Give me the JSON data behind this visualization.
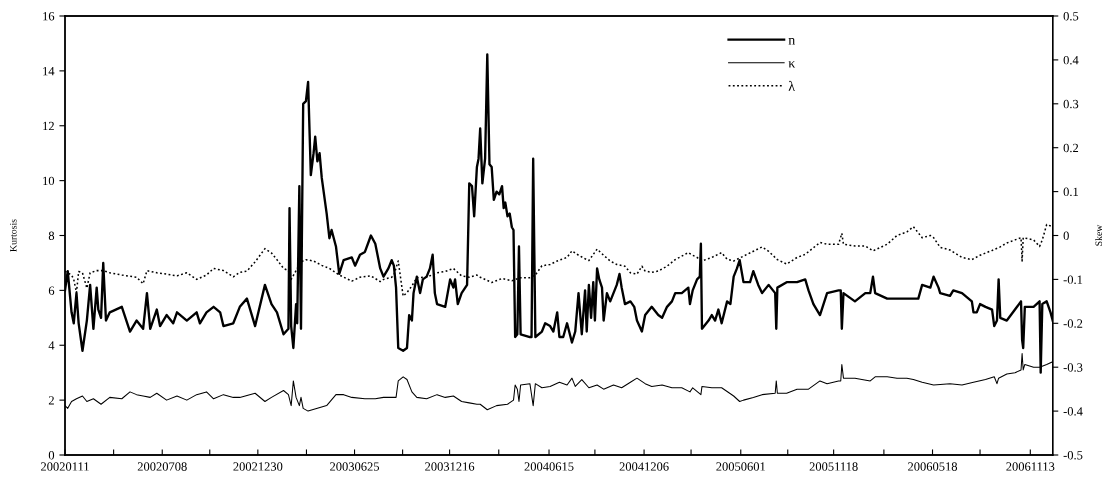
{
  "chart_data": {
    "type": "line",
    "ylabel": "Kurtosis",
    "y2label": "Skew",
    "legend": "top right",
    "line_style": "solid",
    "xlim": [
      "2002-01-11",
      "2006-12-24"
    ],
    "xticks": [
      {
        "value": "2002-01-11",
        "label": "20020111"
      },
      {
        "value": "2002-04-10",
        "label": null
      },
      {
        "value": "2002-07-08",
        "label": "20020708"
      },
      {
        "value": "2002-10-03",
        "label": null
      },
      {
        "value": "2002-12-30",
        "label": "20021230"
      },
      {
        "value": "2003-03-29",
        "label": null
      },
      {
        "value": "2003-06-25",
        "label": "20030625"
      },
      {
        "value": "2003-09-21",
        "label": null
      },
      {
        "value": "2003-12-16",
        "label": "20031216"
      },
      {
        "value": "2004-03-15",
        "label": null
      },
      {
        "value": "2004-06-15",
        "label": "20040615"
      },
      {
        "value": "2004-09-07",
        "label": null
      },
      {
        "value": "2004-12-06",
        "label": "20041206"
      },
      {
        "value": "2005-03-02",
        "label": null
      },
      {
        "value": "2005-06-01",
        "label": "20050601"
      },
      {
        "value": "2005-08-26",
        "label": null
      },
      {
        "value": "2005-11-18",
        "label": "20051118"
      },
      {
        "value": "2006-02-18",
        "label": null
      },
      {
        "value": "2006-05-18",
        "label": "20060518"
      },
      {
        "value": "2006-08-13",
        "label": null
      },
      {
        "value": "2006-11-13",
        "label": "20061113"
      }
    ],
    "ylim": [
      0,
      16
    ],
    "yticks": [
      0,
      2,
      4,
      6,
      8,
      10,
      12,
      14,
      16
    ],
    "y2lim": [
      -0.5,
      0.5
    ],
    "y2ticks": [
      -0.5,
      -0.4,
      -0.3,
      -0.2,
      -0.1,
      0,
      0.1,
      0.2,
      0.3,
      0.4,
      0.5
    ],
    "series": [
      {
        "name": "n",
        "color": "#000000",
        "x": [
          "2002-01-11",
          "2002-01-16",
          "2002-01-23",
          "2002-01-27",
          "2002-02-01",
          "2002-02-05",
          "2002-02-12",
          "2002-02-20",
          "2002-02-26",
          "2002-03-04",
          "2002-03-10",
          "2002-03-13",
          "2002-03-18",
          "2002-03-22",
          "2002-03-27",
          "2002-04-03",
          "2002-04-25",
          "2002-05-10",
          "2002-05-22",
          "2002-06-03",
          "2002-06-10",
          "2002-06-16",
          "2002-06-28",
          "2002-07-04",
          "2002-07-16",
          "2002-07-28",
          "2002-08-04",
          "2002-08-22",
          "2002-09-09",
          "2002-09-15",
          "2002-09-27",
          "2002-10-10",
          "2002-10-22",
          "2002-10-28",
          "2002-11-15",
          "2002-11-27",
          "2002-12-10",
          "2002-12-25",
          "2003-01-12",
          "2003-01-24",
          "2003-02-03",
          "2003-02-15",
          "2003-02-24",
          "2003-02-26",
          "2003-03-01",
          "2003-03-05",
          "2003-03-10",
          "2003-03-12",
          "2003-03-16",
          "2003-03-19",
          "2003-03-23",
          "2003-03-28",
          "2003-04-01",
          "2003-04-06",
          "2003-04-11",
          "2003-04-14",
          "2003-04-18",
          "2003-04-22",
          "2003-04-26",
          "2003-05-05",
          "2003-05-10",
          "2003-05-14",
          "2003-05-22",
          "2003-05-28",
          "2003-06-05",
          "2003-06-20",
          "2003-06-26",
          "2003-07-05",
          "2003-07-14",
          "2003-07-25",
          "2003-08-02",
          "2003-08-11",
          "2003-08-17",
          "2003-08-26",
          "2003-09-01",
          "2003-09-05",
          "2003-09-09",
          "2003-09-13",
          "2003-09-22",
          "2003-09-29",
          "2003-10-03",
          "2003-10-08",
          "2003-10-11",
          "2003-10-17",
          "2003-10-23",
          "2003-10-28",
          "2003-11-04",
          "2003-11-10",
          "2003-11-15",
          "2003-11-19",
          "2003-11-23",
          "2003-12-08",
          "2003-12-17",
          "2003-12-23",
          "2003-12-26",
          "2003-12-31",
          "2004-01-07",
          "2004-01-17",
          "2004-01-21",
          "2004-01-26",
          "2004-01-30",
          "2004-02-04",
          "2004-02-07",
          "2004-02-10",
          "2004-02-14",
          "2004-02-19",
          "2004-02-23",
          "2004-02-27",
          "2004-03-02",
          "2004-03-06",
          "2004-03-11",
          "2004-03-16",
          "2004-03-21",
          "2004-03-24",
          "2004-03-27",
          "2004-03-31",
          "2004-04-04",
          "2004-04-08",
          "2004-04-11",
          "2004-04-14",
          "2004-04-18",
          "2004-04-21",
          "2004-04-24",
          "2004-05-11",
          "2004-05-14",
          "2004-05-17",
          "2004-05-21",
          "2004-06-02",
          "2004-06-08",
          "2004-06-17",
          "2004-06-23",
          "2004-06-30",
          "2004-07-04",
          "2004-07-11",
          "2004-07-18",
          "2004-07-27",
          "2004-08-02",
          "2004-08-08",
          "2004-08-14",
          "2004-08-20",
          "2004-08-23",
          "2004-08-27",
          "2004-08-31",
          "2004-09-04",
          "2004-09-07",
          "2004-09-11",
          "2004-09-15",
          "2004-09-20",
          "2004-09-23",
          "2004-09-29",
          "2004-10-05",
          "2004-10-11",
          "2004-10-17",
          "2004-10-22",
          "2004-10-26",
          "2004-11-01",
          "2004-11-11",
          "2004-11-18",
          "2004-11-23",
          "2004-12-02",
          "2004-12-08",
          "2004-12-20",
          "2005-01-01",
          "2005-01-08",
          "2005-01-17",
          "2005-01-26",
          "2005-02-01",
          "2005-02-13",
          "2005-02-25",
          "2005-02-28",
          "2005-03-05",
          "2005-03-13",
          "2005-03-18",
          "2005-03-20",
          "2005-03-22",
          "2005-04-03",
          "2005-04-09",
          "2005-04-15",
          "2005-04-21",
          "2005-04-27",
          "2005-05-07",
          "2005-05-13",
          "2005-05-19",
          "2005-05-25",
          "2005-05-30",
          "2005-06-06",
          "2005-06-18",
          "2005-06-24",
          "2005-07-03",
          "2005-07-10",
          "2005-07-22",
          "2005-08-03",
          "2005-08-05",
          "2005-08-07",
          "2005-08-24",
          "2005-09-12",
          "2005-09-27",
          "2005-10-03",
          "2005-10-12",
          "2005-10-24",
          "2005-11-06",
          "2005-11-27",
          "2005-12-01",
          "2005-12-03",
          "2005-12-06",
          "2005-12-27",
          "2006-01-15",
          "2006-01-24",
          "2006-01-29",
          "2006-02-02",
          "2006-02-24",
          "2006-03-14",
          "2006-04-01",
          "2006-04-13",
          "2006-04-22",
          "2006-04-29",
          "2006-05-14",
          "2006-05-20",
          "2006-05-29",
          "2006-06-01",
          "2006-06-19",
          "2006-06-25",
          "2006-07-11",
          "2006-07-29",
          "2006-08-01",
          "2006-08-07",
          "2006-08-13",
          "2006-08-23",
          "2006-09-04",
          "2006-09-08",
          "2006-09-13",
          "2006-09-16",
          "2006-09-19",
          "2006-10-01",
          "2006-10-16",
          "2006-10-27",
          "2006-10-29",
          "2006-10-31",
          "2006-11-03",
          "2006-11-19",
          "2006-11-30",
          "2006-12-02",
          "2006-12-05",
          "2006-12-13",
          "2006-12-20",
          "2006-12-24"
        ],
        "values": [
          6.0,
          6.7,
          5.2,
          4.8,
          5.9,
          4.8,
          3.8,
          4.9,
          6.2,
          4.6,
          6.1,
          5.3,
          5.0,
          7.0,
          4.9,
          5.2,
          5.4,
          4.5,
          4.9,
          4.6,
          5.9,
          4.6,
          5.3,
          4.7,
          5.1,
          4.8,
          5.2,
          4.9,
          5.2,
          4.8,
          5.2,
          5.4,
          5.2,
          4.7,
          4.8,
          5.4,
          5.7,
          4.7,
          6.2,
          5.5,
          5.2,
          4.4,
          4.6,
          9.0,
          4.7,
          3.9,
          5.5,
          4.8,
          9.8,
          4.6,
          12.8,
          12.9,
          13.6,
          10.2,
          11.0,
          11.6,
          10.7,
          11.0,
          10.1,
          8.8,
          7.9,
          8.2,
          7.6,
          6.6,
          7.1,
          7.2,
          6.9,
          7.3,
          7.4,
          8.0,
          7.7,
          6.8,
          6.5,
          6.8,
          7.1,
          6.9,
          6.1,
          3.9,
          3.8,
          3.9,
          5.1,
          4.9,
          5.9,
          6.5,
          5.9,
          6.4,
          6.5,
          6.8,
          7.3,
          5.9,
          5.5,
          5.4,
          6.4,
          6.1,
          6.4,
          5.5,
          5.9,
          6.2,
          9.9,
          9.8,
          8.7,
          10.5,
          10.8,
          11.9,
          9.9,
          10.8,
          14.6,
          10.6,
          10.5,
          9.3,
          9.6,
          9.5,
          9.8,
          9.0,
          9.2,
          8.7,
          8.8,
          8.3,
          8.2,
          4.3,
          4.4,
          7.6,
          4.4,
          4.3,
          4.3,
          10.8,
          4.3,
          4.5,
          4.8,
          4.7,
          4.5,
          5.2,
          4.3,
          4.3,
          4.8,
          4.1,
          4.5,
          5.9,
          4.4,
          6.0,
          4.5,
          6.2,
          5.0,
          6.3,
          4.9,
          6.8,
          6.4,
          6.1,
          4.9,
          5.9,
          5.6,
          5.9,
          6.2,
          6.6,
          6.1,
          5.5,
          5.6,
          5.4,
          4.9,
          4.5,
          5.1,
          5.4,
          5.1,
          5.0,
          5.4,
          5.6,
          5.9,
          5.9,
          6.1,
          5.5,
          6.0,
          6.4,
          6.5,
          7.7,
          4.6,
          4.9,
          5.1,
          4.9,
          5.3,
          4.8,
          5.6,
          5.5,
          6.5,
          6.8,
          7.1,
          6.3,
          6.3,
          6.7,
          6.2,
          5.9,
          6.2,
          5.9,
          4.6,
          6.1,
          6.3,
          6.3,
          6.4,
          6.0,
          5.5,
          5.1,
          5.9,
          6.0,
          6.0,
          4.6,
          5.9,
          5.6,
          5.9,
          5.9,
          6.5,
          5.9,
          5.7,
          5.7,
          5.7,
          5.7,
          5.7,
          6.2,
          6.1,
          6.5,
          6.1,
          5.9,
          5.8,
          6.0,
          5.9,
          5.6,
          5.2,
          5.2,
          5.5,
          5.4,
          5.3,
          4.7,
          4.9,
          6.4,
          5.0,
          4.9,
          5.3,
          5.6,
          4.2,
          3.9,
          5.4,
          5.4,
          5.6,
          3.0,
          5.5,
          5.6,
          5.2,
          4.9
        ]
      },
      {
        "name": "κ",
        "color": "#000000",
        "x": [
          "2002-01-11",
          "2002-01-16",
          "2002-01-23",
          "2002-02-01",
          "2002-02-12",
          "2002-02-20",
          "2002-03-04",
          "2002-03-18",
          "2002-04-03",
          "2002-04-25",
          "2002-05-10",
          "2002-05-22",
          "2002-06-03",
          "2002-06-16",
          "2002-06-28",
          "2002-07-16",
          "2002-08-04",
          "2002-08-22",
          "2002-09-09",
          "2002-09-27",
          "2002-10-10",
          "2002-10-28",
          "2002-11-15",
          "2002-11-27",
          "2002-12-25",
          "2003-01-12",
          "2003-01-24",
          "2003-02-15",
          "2003-02-24",
          "2003-03-01",
          "2003-03-05",
          "2003-03-10",
          "2003-03-16",
          "2003-03-19",
          "2003-03-23",
          "2003-04-01",
          "2003-04-18",
          "2003-05-05",
          "2003-05-22",
          "2003-06-05",
          "2003-06-20",
          "2003-07-14",
          "2003-08-02",
          "2003-08-17",
          "2003-09-01",
          "2003-09-09",
          "2003-09-13",
          "2003-09-22",
          "2003-09-29",
          "2003-10-08",
          "2003-10-17",
          "2003-11-04",
          "2003-11-23",
          "2003-12-08",
          "2003-12-23",
          "2004-01-07",
          "2004-01-21",
          "2004-02-04",
          "2004-02-10",
          "2004-02-23",
          "2004-03-11",
          "2004-03-31",
          "2004-04-11",
          "2004-04-14",
          "2004-04-18",
          "2004-04-21",
          "2004-04-24",
          "2004-05-11",
          "2004-05-17",
          "2004-05-21",
          "2004-06-02",
          "2004-06-17",
          "2004-07-04",
          "2004-07-18",
          "2004-07-27",
          "2004-08-02",
          "2004-08-14",
          "2004-08-27",
          "2004-09-11",
          "2004-09-23",
          "2004-10-11",
          "2004-10-26",
          "2004-11-11",
          "2004-11-23",
          "2004-12-08",
          "2004-12-20",
          "2005-01-08",
          "2005-01-26",
          "2005-02-13",
          "2005-02-28",
          "2005-03-05",
          "2005-03-20",
          "2005-03-22",
          "2005-04-09",
          "2005-04-27",
          "2005-05-19",
          "2005-05-30",
          "2005-06-06",
          "2005-06-24",
          "2005-07-10",
          "2005-08-03",
          "2005-08-05",
          "2005-08-07",
          "2005-08-24",
          "2005-09-12",
          "2005-10-03",
          "2005-10-24",
          "2005-11-06",
          "2005-11-27",
          "2005-12-01",
          "2005-12-03",
          "2005-12-06",
          "2005-12-27",
          "2006-01-24",
          "2006-02-02",
          "2006-02-24",
          "2006-03-14",
          "2006-04-01",
          "2006-04-13",
          "2006-04-29",
          "2006-05-20",
          "2006-06-19",
          "2006-07-11",
          "2006-08-01",
          "2006-08-23",
          "2006-09-08",
          "2006-09-13",
          "2006-09-16",
          "2006-10-01",
          "2006-10-16",
          "2006-10-27",
          "2006-10-29",
          "2006-10-31",
          "2006-11-03",
          "2006-11-19",
          "2006-11-30",
          "2006-12-13",
          "2006-12-24"
        ],
        "values": [
          1.8,
          1.7,
          1.95,
          2.05,
          2.15,
          1.95,
          2.05,
          1.85,
          2.1,
          2.05,
          2.3,
          2.2,
          2.15,
          2.1,
          2.25,
          2.0,
          2.15,
          2.0,
          2.2,
          2.3,
          2.05,
          2.2,
          2.1,
          2.1,
          2.25,
          1.95,
          2.1,
          2.35,
          2.2,
          1.8,
          2.7,
          2.1,
          1.8,
          2.1,
          1.7,
          1.6,
          1.7,
          1.8,
          2.2,
          2.2,
          2.1,
          2.05,
          2.05,
          2.1,
          2.1,
          2.1,
          2.7,
          2.85,
          2.75,
          2.3,
          2.1,
          2.05,
          2.2,
          2.1,
          2.15,
          1.95,
          1.9,
          1.85,
          1.85,
          1.65,
          1.8,
          1.85,
          2.0,
          2.55,
          2.4,
          1.95,
          2.55,
          2.6,
          1.8,
          2.6,
          2.45,
          2.5,
          2.65,
          2.55,
          2.8,
          2.5,
          2.75,
          2.45,
          2.55,
          2.4,
          2.55,
          2.45,
          2.65,
          2.8,
          2.6,
          2.5,
          2.55,
          2.45,
          2.45,
          2.3,
          2.45,
          2.2,
          2.5,
          2.45,
          2.45,
          2.15,
          1.95,
          2.0,
          2.1,
          2.2,
          2.25,
          2.7,
          2.25,
          2.25,
          2.4,
          2.4,
          2.7,
          2.6,
          2.7,
          2.7,
          3.3,
          2.8,
          2.8,
          2.7,
          2.85,
          2.85,
          2.8,
          2.8,
          2.75,
          2.65,
          2.55,
          2.6,
          2.55,
          2.65,
          2.75,
          2.85,
          2.6,
          2.8,
          2.95,
          3.0,
          3.1,
          3.7,
          3.1,
          3.3,
          3.2,
          3.2,
          3.3,
          3.4
        ]
      },
      {
        "name": "λ",
        "color": "#000000",
        "axis": "y2",
        "line_style": "dotted",
        "x": [
          "2002-01-11",
          "2002-01-16",
          "2002-01-23",
          "2002-01-27",
          "2002-02-01",
          "2002-02-05",
          "2002-02-12",
          "2002-02-20",
          "2002-02-26",
          "2002-03-10",
          "2002-03-22",
          "2002-04-03",
          "2002-04-25",
          "2002-05-22",
          "2002-06-03",
          "2002-06-10",
          "2002-06-28",
          "2002-07-16",
          "2002-08-04",
          "2002-08-22",
          "2002-09-09",
          "2002-09-27",
          "2002-10-10",
          "2002-10-28",
          "2002-11-15",
          "2002-11-27",
          "2002-12-10",
          "2002-12-25",
          "2003-01-12",
          "2003-01-24",
          "2003-02-03",
          "2003-02-15",
          "2003-02-24",
          "2003-03-01",
          "2003-03-10",
          "2003-03-19",
          "2003-03-28",
          "2003-04-11",
          "2003-04-26",
          "2003-05-10",
          "2003-05-28",
          "2003-06-20",
          "2003-07-05",
          "2003-07-25",
          "2003-08-11",
          "2003-08-17",
          "2003-09-01",
          "2003-09-05",
          "2003-09-13",
          "2003-09-22",
          "2003-09-29",
          "2003-10-08",
          "2003-10-17",
          "2003-11-04",
          "2003-11-23",
          "2003-12-08",
          "2003-12-23",
          "2004-01-07",
          "2004-01-21",
          "2004-02-04",
          "2004-02-10",
          "2004-03-02",
          "2004-03-21",
          "2004-04-08",
          "2004-04-24",
          "2004-05-11",
          "2004-05-21",
          "2004-06-02",
          "2004-06-17",
          "2004-06-30",
          "2004-07-18",
          "2004-07-27",
          "2004-08-08",
          "2004-08-20",
          "2004-08-27",
          "2004-09-11",
          "2004-09-23",
          "2004-10-05",
          "2004-10-17",
          "2004-11-01",
          "2004-11-11",
          "2004-11-23",
          "2004-12-02",
          "2004-12-08",
          "2004-12-20",
          "2005-01-01",
          "2005-01-17",
          "2005-02-01",
          "2005-02-25",
          "2005-03-05",
          "2005-03-13",
          "2005-03-22",
          "2005-04-09",
          "2005-04-27",
          "2005-05-07",
          "2005-05-19",
          "2005-06-06",
          "2005-06-24",
          "2005-07-10",
          "2005-07-22",
          "2005-08-07",
          "2005-08-24",
          "2005-09-12",
          "2005-09-27",
          "2005-10-12",
          "2005-10-24",
          "2005-11-06",
          "2005-11-27",
          "2005-12-03",
          "2005-12-06",
          "2005-12-27",
          "2006-01-15",
          "2006-01-29",
          "2006-02-24",
          "2006-03-14",
          "2006-04-01",
          "2006-04-13",
          "2006-04-29",
          "2006-05-14",
          "2006-05-20",
          "2006-06-01",
          "2006-06-19",
          "2006-07-11",
          "2006-07-29",
          "2006-08-13",
          "2006-09-04",
          "2006-09-19",
          "2006-10-01",
          "2006-10-16",
          "2006-10-27",
          "2006-10-29",
          "2006-10-31",
          "2006-11-19",
          "2006-11-30",
          "2006-12-05",
          "2006-12-13",
          "2006-12-24"
        ],
        "values": [
          -0.081,
          -0.085,
          -0.09,
          -0.1,
          -0.13,
          -0.082,
          -0.085,
          -0.12,
          -0.085,
          -0.08,
          -0.08,
          -0.085,
          -0.09,
          -0.095,
          -0.11,
          -0.08,
          -0.085,
          -0.088,
          -0.092,
          -0.085,
          -0.1,
          -0.09,
          -0.075,
          -0.08,
          -0.094,
          -0.084,
          -0.081,
          -0.06,
          -0.03,
          -0.04,
          -0.055,
          -0.075,
          -0.08,
          -0.1,
          -0.08,
          -0.06,
          -0.055,
          -0.058,
          -0.068,
          -0.075,
          -0.09,
          -0.104,
          -0.095,
          -0.092,
          -0.105,
          -0.1,
          -0.095,
          -0.09,
          -0.058,
          -0.138,
          -0.13,
          -0.115,
          -0.096,
          -0.095,
          -0.085,
          -0.082,
          -0.075,
          -0.092,
          -0.095,
          -0.09,
          -0.095,
          -0.107,
          -0.098,
          -0.103,
          -0.096,
          -0.096,
          -0.09,
          -0.069,
          -0.066,
          -0.058,
          -0.05,
          -0.035,
          -0.045,
          -0.053,
          -0.057,
          -0.031,
          -0.045,
          -0.058,
          -0.066,
          -0.07,
          -0.085,
          -0.088,
          -0.07,
          -0.081,
          -0.084,
          -0.081,
          -0.07,
          -0.055,
          -0.039,
          -0.045,
          -0.05,
          -0.058,
          -0.05,
          -0.039,
          -0.054,
          -0.058,
          -0.047,
          -0.036,
          -0.026,
          -0.036,
          -0.055,
          -0.065,
          -0.05,
          -0.043,
          -0.028,
          -0.016,
          -0.02,
          -0.02,
          0.005,
          -0.02,
          -0.024,
          -0.024,
          -0.035,
          -0.02,
          0.0,
          0.008,
          0.02,
          -0.005,
          0.0,
          -0.005,
          -0.027,
          -0.033,
          -0.05,
          -0.055,
          -0.045,
          -0.034,
          -0.026,
          -0.017,
          -0.01,
          -0.005,
          -0.058,
          -0.005,
          -0.01,
          -0.025,
          -0.01,
          0.025,
          0.02
        ]
      }
    ]
  }
}
